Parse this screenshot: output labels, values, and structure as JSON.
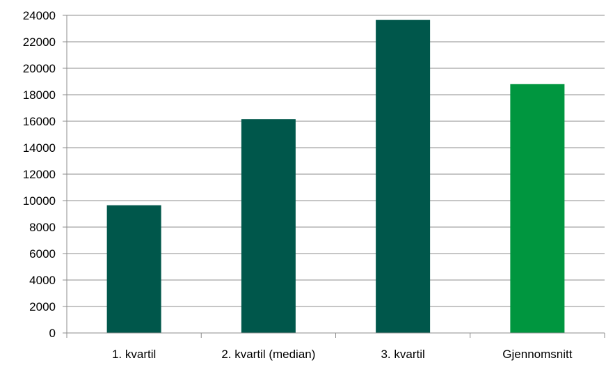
{
  "chart_data": {
    "type": "bar",
    "title": "",
    "xlabel": "",
    "ylabel": "",
    "categories": [
      "1. kvartil",
      "2. kvartil (median)",
      "3. kvartil",
      "Gjennomsnitt"
    ],
    "values": [
      9650,
      16150,
      23650,
      18800
    ],
    "ylim": [
      0,
      24000
    ],
    "yticks": [
      0,
      2000,
      4000,
      6000,
      8000,
      10000,
      12000,
      14000,
      16000,
      18000,
      20000,
      22000,
      24000
    ],
    "grid": true,
    "legend": "none",
    "colors": {
      "bars": [
        "#00574b",
        "#00574b",
        "#00574b",
        "#00963f"
      ],
      "grid": "#8c8c8c",
      "axis": "#8c8c8c"
    }
  }
}
